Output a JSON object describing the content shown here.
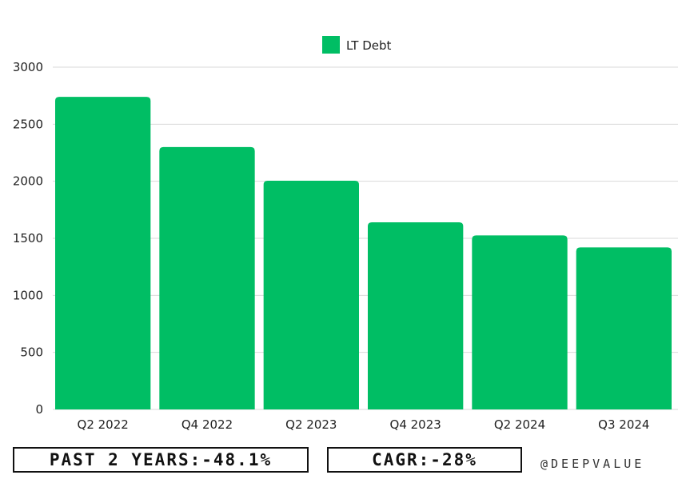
{
  "chart_data": {
    "type": "bar",
    "categories": [
      "Q2 2022",
      "Q4 2022",
      "Q2 2023",
      "Q4 2023",
      "Q2 2024",
      "Q3 2024"
    ],
    "series": [
      {
        "name": "LT Debt",
        "values": [
          2740,
          2300,
          2005,
          1640,
          1525,
          1420
        ],
        "color": "#00BE64"
      }
    ],
    "ylim": [
      0,
      3000
    ],
    "yticks": [
      0,
      500,
      1000,
      1500,
      2000,
      2500,
      3000
    ],
    "grid": true,
    "legend_position": "top-center"
  },
  "stats": {
    "past_years": "PAST 2 YEARS:-48.1%",
    "cagr": "CAGR:-28%"
  },
  "watermark": "@DEEPVALUE"
}
